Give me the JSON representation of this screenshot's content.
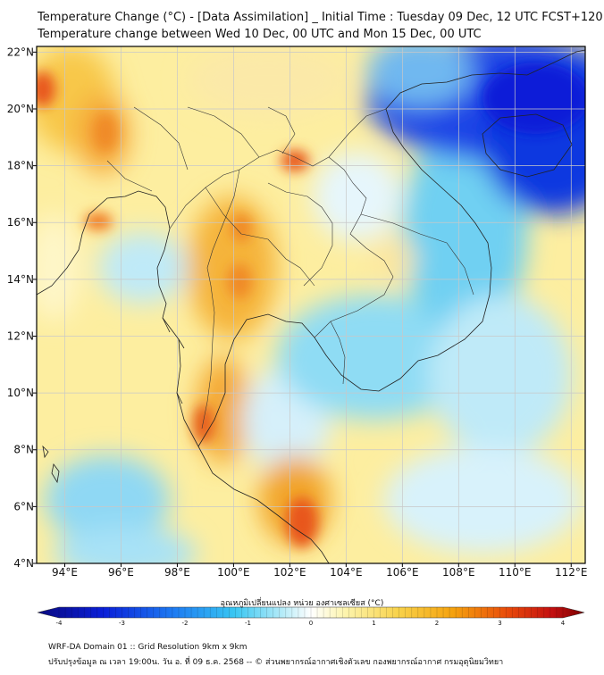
{
  "header": {
    "title_line1": "Temperature Change (°C) - [Data Assimilation] _ Initial Time : Tuesday 09 Dec, 12 UTC FCST+120",
    "title_line2": "Temperature change between Wed 10 Dec, 00 UTC and Mon 15 Dec, 00 UTC"
  },
  "map": {
    "lon_ticks": [
      "94°E",
      "96°E",
      "98°E",
      "100°E",
      "102°E",
      "104°E",
      "106°E",
      "108°E",
      "110°E",
      "112°E"
    ],
    "lat_ticks": [
      "22°N",
      "20°N",
      "18°N",
      "16°N",
      "14°N",
      "12°N",
      "10°N",
      "8°N",
      "6°N",
      "4°N"
    ],
    "lon_range": [
      93.0,
      112.5
    ],
    "lat_range": [
      4.0,
      22.2
    ]
  },
  "colorbar": {
    "title": "อุณหภูมิเปลี่ยนแปลง หน่วย องศาเซลเซียส (°C)",
    "ticks": [
      "-4",
      "-3",
      "-2",
      "-1",
      "0",
      "1",
      "2",
      "3",
      "4"
    ],
    "min": -4,
    "max": 4
  },
  "footer": {
    "line1": "WRF-DA Domain 01 :: Grid Resolution 9km x 9km",
    "line2": "ปรับปรุงข้อมูล ณ เวลา 19:00น. วัน อ. ที่ 09 ธ.ค. 2568 -- © ส่วนพยากรณ์อากาศเชิงตัวเลข กองพยากรณ์อากาศ กรมอุตุนิยมวิทยา"
  },
  "colors": {
    "frame": "#000000",
    "gridline": "#c8c8c8",
    "field_base": "#fdeea0",
    "warm": "#f5a20e",
    "hot": "#e84a0a",
    "cool": "#8fdcf4",
    "cold": "#0a1fd8"
  }
}
